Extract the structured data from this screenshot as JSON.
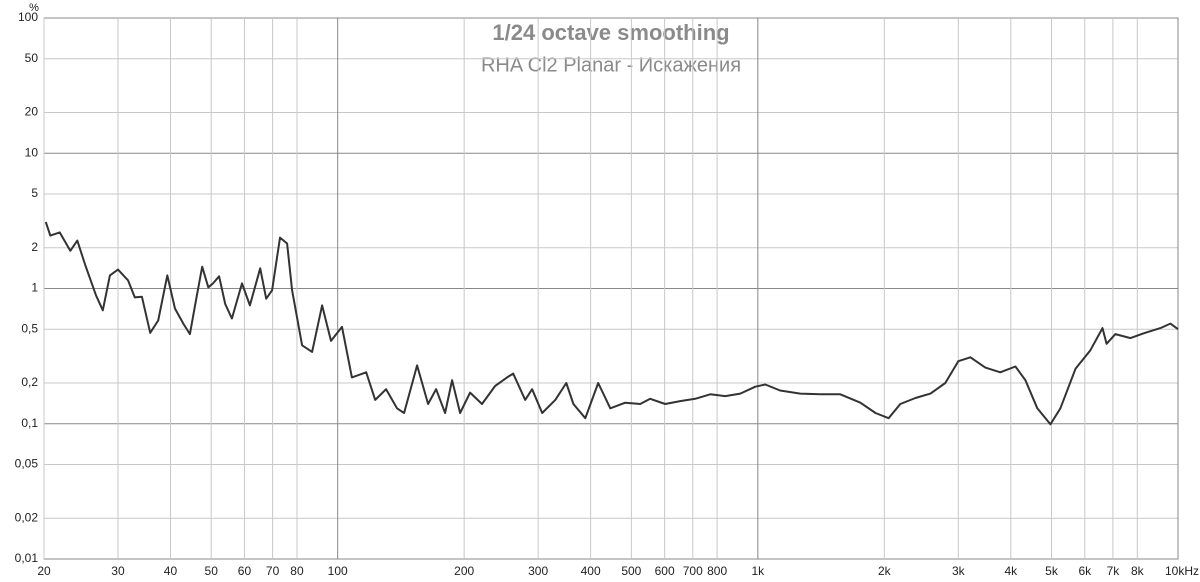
{
  "chart_data": {
    "type": "line",
    "title": "1/24 octave smoothing",
    "subtitle": "RHA Cl2 Planar - Искажения",
    "y_label": "%",
    "xscale": "log",
    "yscale": "log",
    "grid": true,
    "xlim": [
      20,
      10000
    ],
    "ylim": [
      0.01,
      100
    ],
    "xticks": [
      20,
      30,
      40,
      50,
      60,
      70,
      80,
      100,
      200,
      300,
      400,
      500,
      600,
      700,
      800,
      {
        "value": 1000,
        "label": "1k"
      },
      {
        "value": 2000,
        "label": "2k"
      },
      {
        "value": 3000,
        "label": "3k"
      },
      {
        "value": 4000,
        "label": "4k"
      },
      {
        "value": 5000,
        "label": "5k"
      },
      {
        "value": 6000,
        "label": "6k"
      },
      {
        "value": 7000,
        "label": "7k"
      },
      {
        "value": 8000,
        "label": "8k"
      },
      {
        "value": 10000,
        "label": "10kHz"
      }
    ],
    "yticks": [
      100,
      50,
      20,
      10,
      5,
      2,
      1,
      {
        "value": 0.5,
        "label": "0,5"
      },
      {
        "value": 0.2,
        "label": "0,2"
      },
      {
        "value": 0.1,
        "label": "0,1"
      },
      {
        "value": 0.05,
        "label": "0,05"
      },
      {
        "value": 0.02,
        "label": "0,02"
      },
      {
        "value": 0.01,
        "label": "0,01"
      }
    ],
    "x": [
      20.2,
      20.7,
      21.8,
      23.1,
      24.0,
      25.1,
      26.6,
      27.6,
      28.7,
      30,
      31.7,
      32.9,
      34.2,
      35.8,
      37.4,
      39.3,
      41.0,
      42.9,
      44.5,
      46.0,
      47.6,
      49.2,
      50.5,
      52.2,
      54.0,
      56.0,
      59.2,
      61.8,
      65.4,
      67.6,
      69.8,
      72.9,
      75.8,
      77.9,
      82.3,
      86.9,
      91.8,
      96.4,
      102.4,
      108.1,
      116.9,
      122.8,
      130.4,
      138.4,
      143.9,
      154.5,
      164.1,
      171.5,
      180.2,
      187.2,
      195.6,
      206.6,
      220.6,
      237.0,
      253.0,
      261.6,
      279.4,
      290.3,
      306.8,
      329.5,
      350.0,
      363.9,
      388.4,
      416.9,
      445.5,
      483.3,
      524.8,
      554.3,
      602.0,
      653.3,
      709.6,
      770.8,
      836.2,
      908.2,
      986.4,
      1042,
      1130,
      1262,
      1409,
      1571,
      1754,
      1906,
      2047,
      2183,
      2372,
      2576,
      2794,
      3000,
      3206,
      3479,
      3777,
      4102,
      4334,
      4624,
      4969,
      5250,
      5703,
      6188,
      6612,
      6763,
      7097,
      7709,
      8357,
      9080,
      9592,
      10000
    ],
    "series": [
      {
        "color": "#333333",
        "values": [
          3.1,
          2.46,
          2.6,
          1.9,
          2.26,
          1.48,
          0.89,
          0.69,
          1.25,
          1.38,
          1.15,
          0.86,
          0.87,
          0.47,
          0.58,
          1.25,
          0.71,
          0.55,
          0.46,
          0.82,
          1.45,
          1.02,
          1.09,
          1.23,
          0.77,
          0.6,
          1.09,
          0.75,
          1.41,
          0.84,
          0.97,
          2.38,
          2.15,
          0.97,
          0.38,
          0.34,
          0.75,
          0.41,
          0.52,
          0.22,
          0.24,
          0.15,
          0.18,
          0.13,
          0.12,
          0.27,
          0.14,
          0.18,
          0.12,
          0.21,
          0.12,
          0.17,
          0.14,
          0.19,
          0.22,
          0.235,
          0.15,
          0.18,
          0.12,
          0.15,
          0.2,
          0.14,
          0.11,
          0.2,
          0.13,
          0.143,
          0.14,
          0.153,
          0.14,
          0.147,
          0.153,
          0.165,
          0.16,
          0.167,
          0.188,
          0.195,
          0.176,
          0.167,
          0.165,
          0.165,
          0.143,
          0.12,
          0.11,
          0.14,
          0.155,
          0.167,
          0.2,
          0.29,
          0.31,
          0.26,
          0.24,
          0.265,
          0.21,
          0.13,
          0.099,
          0.13,
          0.255,
          0.35,
          0.51,
          0.39,
          0.46,
          0.43,
          0.47,
          0.51,
          0.55,
          0.5
        ]
      }
    ]
  }
}
